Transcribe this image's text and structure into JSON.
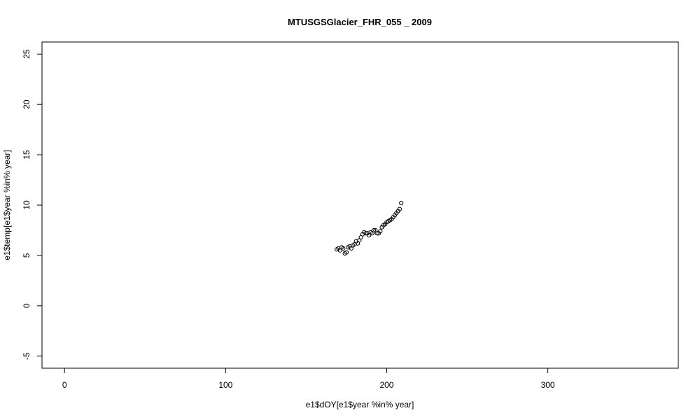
{
  "chart_data": {
    "type": "scatter",
    "title": "MTUSGSGlacier_FHR_055 _ 2009",
    "xlabel": "e1$dOY[e1$year %in% year]",
    "ylabel": "e1$temp[e1$year %in% year]",
    "xlim": [
      -14,
      381
    ],
    "ylim": [
      -6.2,
      26.2
    ],
    "x_ticks": [
      "0",
      "100",
      "200",
      "300"
    ],
    "y_ticks": [
      "-5",
      "0",
      "5",
      "10",
      "15",
      "20",
      "25"
    ],
    "marker": "open-circle",
    "color": "#000000",
    "grid": false,
    "series": [
      {
        "x": [
          169,
          170,
          171,
          172,
          173,
          174,
          175,
          176,
          177,
          178,
          179,
          180,
          181,
          182,
          183,
          184,
          185,
          186,
          187,
          188,
          189,
          190,
          191,
          192,
          193,
          194,
          195,
          196,
          197,
          198,
          199,
          200,
          201,
          202,
          203,
          204,
          205,
          206,
          207,
          208,
          209
        ],
        "y": [
          5.6,
          5.7,
          5.5,
          5.8,
          5.7,
          5.2,
          5.3,
          5.8,
          5.9,
          5.7,
          6.0,
          6.1,
          6.4,
          6.2,
          6.5,
          6.8,
          7.1,
          7.3,
          7.2,
          7.2,
          7.0,
          7.3,
          7.2,
          7.5,
          7.5,
          7.2,
          7.2,
          7.4,
          7.8,
          8.0,
          8.1,
          8.3,
          8.4,
          8.5,
          8.6,
          8.8,
          9.0,
          9.2,
          9.4,
          9.6,
          10.2
        ]
      }
    ]
  }
}
